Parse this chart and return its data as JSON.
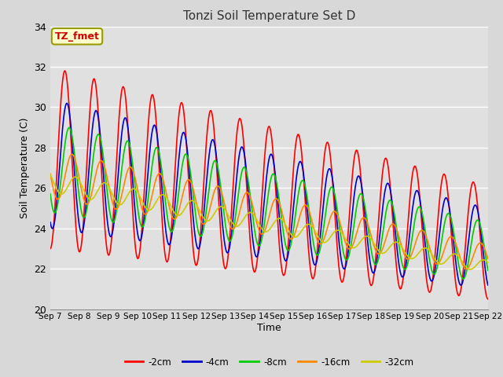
{
  "title": "Tonzi Soil Temperature Set D",
  "xlabel": "Time",
  "ylabel": "Soil Temperature (C)",
  "ylim": [
    20,
    34
  ],
  "annotation_text": "TZ_fmet",
  "annotation_color": "#cc0000",
  "annotation_bg": "#ffffcc",
  "annotation_border": "#999900",
  "series_colors": [
    "#ff0000",
    "#0000cc",
    "#00cc00",
    "#ff8800",
    "#cccc00"
  ],
  "series_labels": [
    "-2cm",
    "-4cm",
    "-8cm",
    "-16cm",
    "-32cm"
  ],
  "tick_labels": [
    "Sep 7",
    "Sep 8",
    "Sep 9",
    "Sep 10",
    "Sep 11",
    "Sep 12",
    "Sep 13",
    "Sep 14",
    "Sep 15",
    "Sep 16",
    "Sep 17",
    "Sep 18",
    "Sep 19",
    "Sep 20",
    "Sep 21",
    "Sep 22"
  ],
  "bg_color": "#d8d8d8",
  "plot_bg": "#e0e0e0",
  "grid_color": "#ffffff",
  "yticks": [
    20,
    22,
    24,
    26,
    28,
    30,
    32,
    34
  ],
  "linewidth": 1.2
}
